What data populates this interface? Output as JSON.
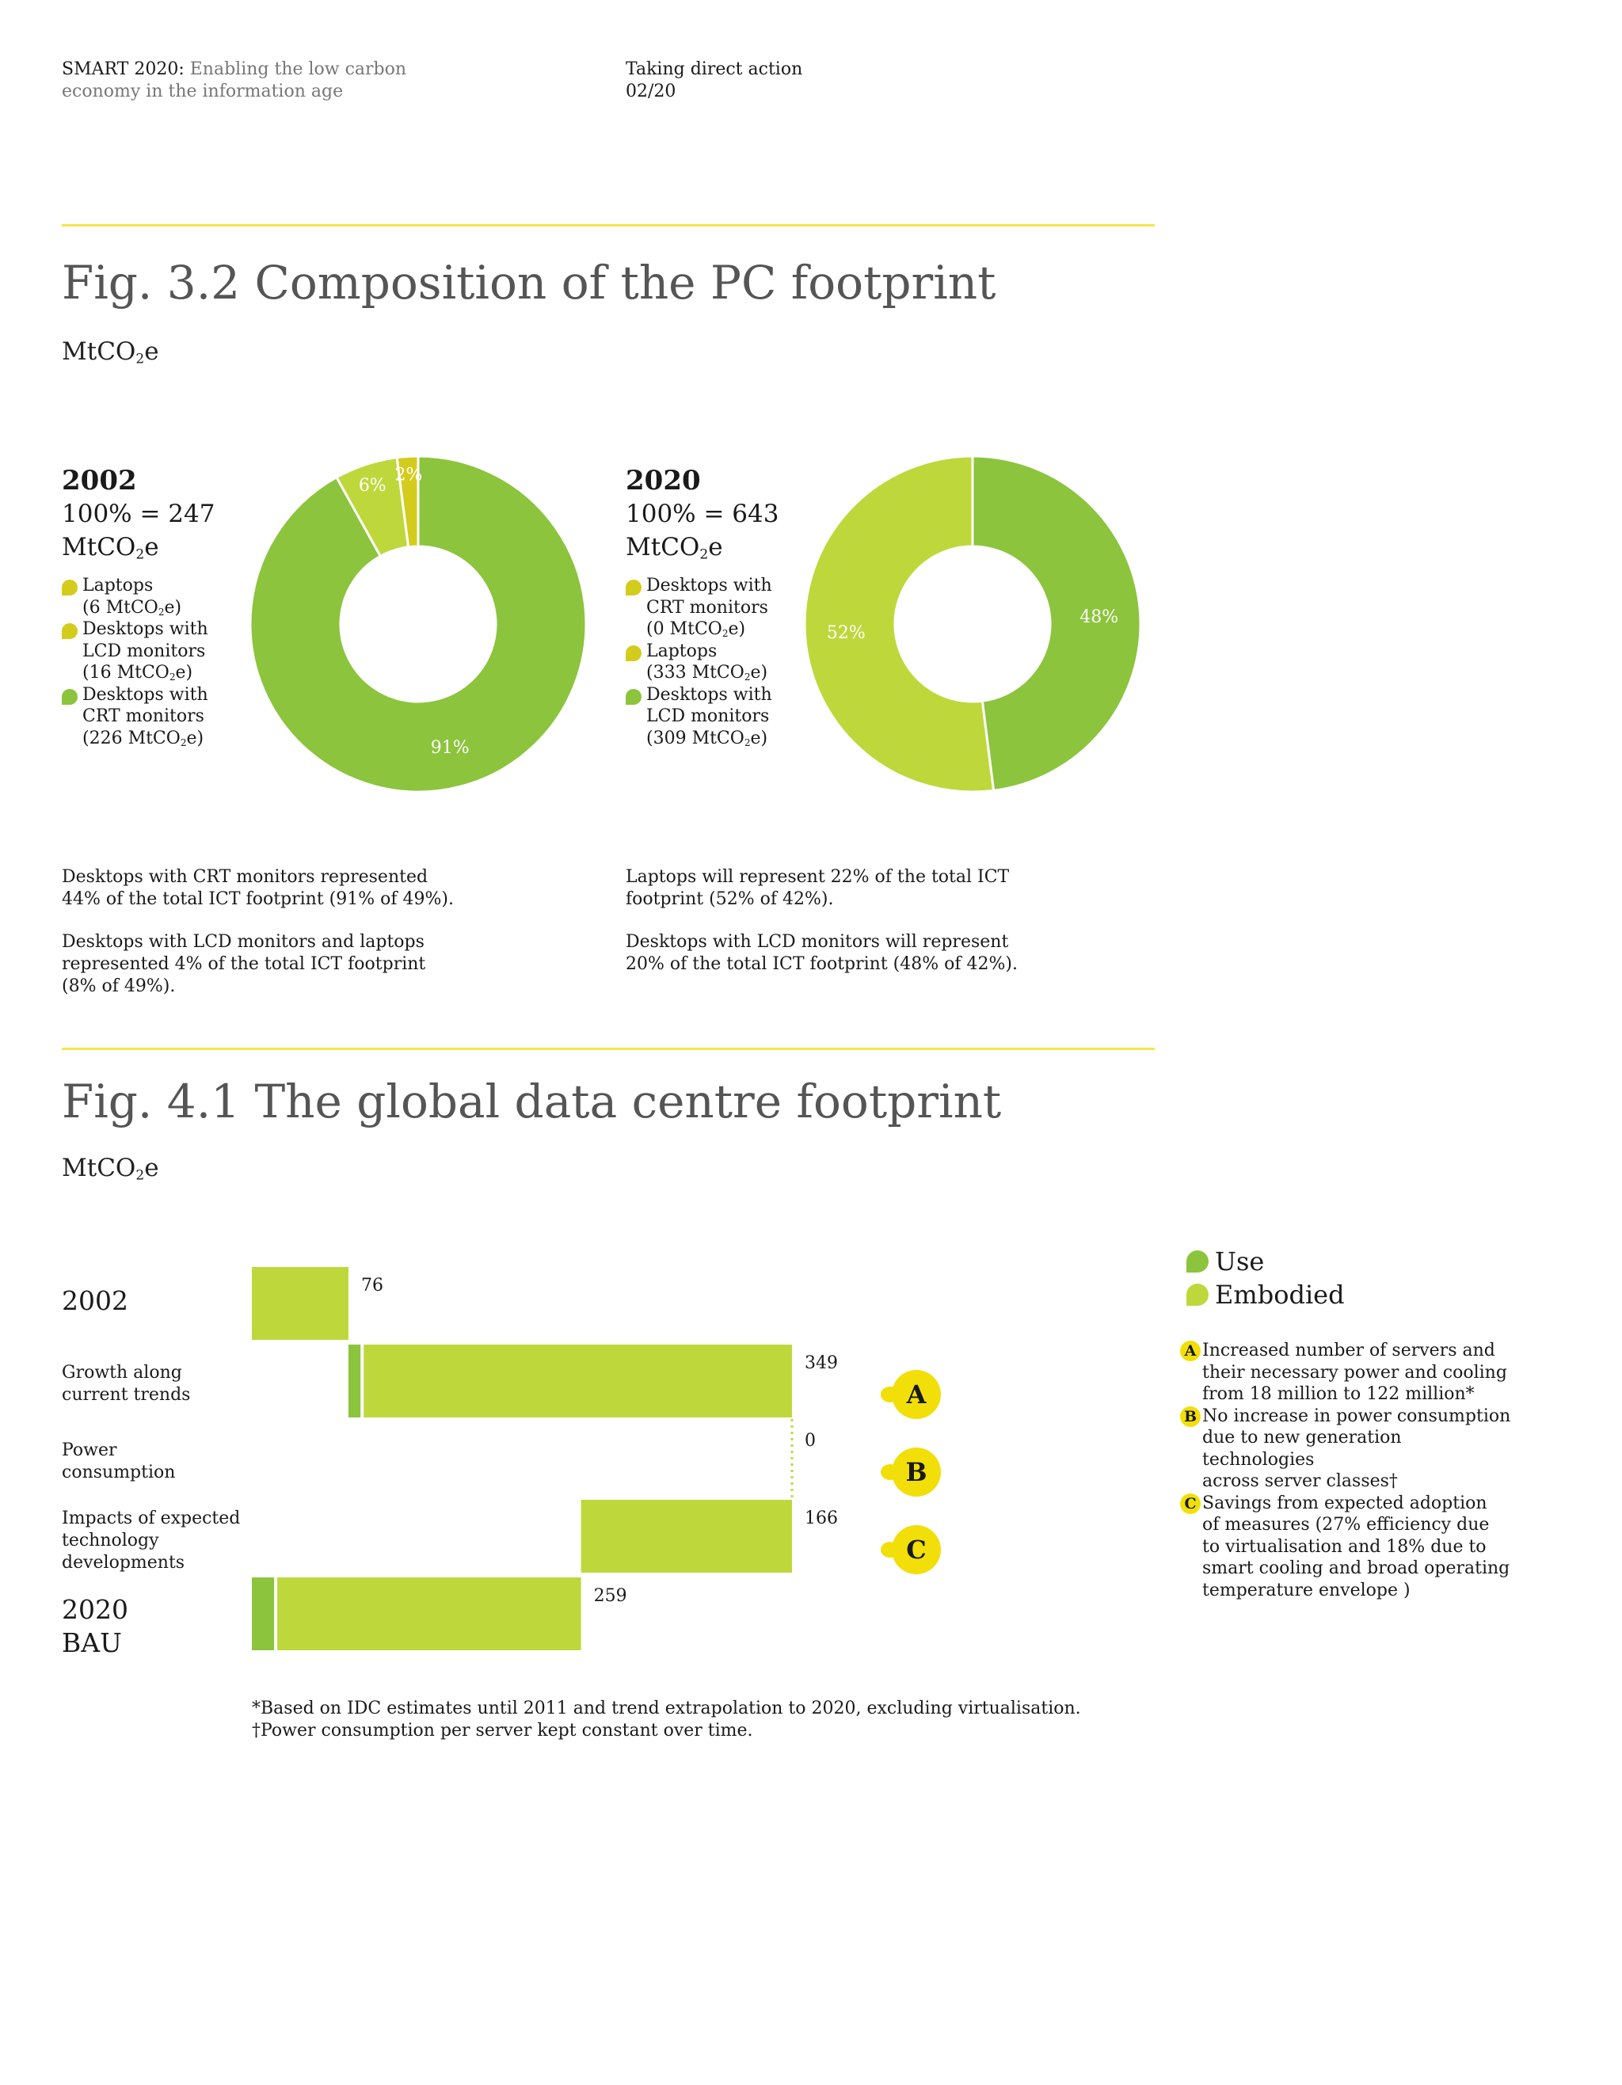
{
  "header": {
    "left_bold": "SMART 2020:",
    "left_rest_line1": "Enabling the low carbon",
    "left_line2": "economy in the information age",
    "right_line1": "Taking direct action",
    "right_line2": "02/20"
  },
  "colors": {
    "rule": "#f2e64a",
    "dark_green": "#8cc43e",
    "light_green": "#bed83c",
    "yellow_green": "#d4cc1c",
    "badge_yellow": "#f2df0a"
  },
  "fig32": {
    "title": "Fig. 3.2 Composition of the PC footprint",
    "unit_main": "MtCO",
    "unit_sub": "2",
    "unit_end": "e",
    "left": {
      "year": "2002",
      "total_line1": "100% = 247",
      "total_line2_main": "MtCO",
      "total_line2_sub": "2",
      "total_line2_end": "e",
      "legend": [
        {
          "l1": "Laptops",
          "l2": "(6 MtCO",
          "sub": "2",
          "end": "e)",
          "l3": "",
          "color": "#d4cc1c"
        },
        {
          "l1": "Desktops with",
          "l2": "LCD monitors",
          "l3a": "(16 MtCO",
          "sub": "2",
          "end": "e)",
          "color": "#d4cc1c"
        },
        {
          "l1": "Desktops with",
          "l2": "CRT monitors",
          "l3a": "(226 MtCO",
          "sub": "2",
          "end": "e)",
          "color": "#8cc43e"
        }
      ],
      "notes": [
        "Desktops with CRT monitors represented",
        "44% of the total ICT footprint (91% of 49%).",
        "Desktops with LCD monitors and laptops",
        "represented 4% of the total ICT footprint",
        "(8% of 49%)."
      ]
    },
    "right": {
      "year": "2020",
      "total_line1": "100% = 643",
      "total_line2_main": "MtCO",
      "total_line2_sub": "2",
      "total_line2_end": "e",
      "legend": [
        {
          "l1": "Desktops with",
          "l2": "CRT monitors",
          "l3a": "(0 MtCO",
          "sub": "2",
          "end": "e)",
          "color": "#d4cc1c"
        },
        {
          "l1": "Laptops",
          "l3a": "(333 MtCO",
          "sub": "2",
          "end": "e)",
          "color": "#d4cc1c"
        },
        {
          "l1": "Desktops with",
          "l2": "LCD monitors",
          "l3a": "(309 MtCO",
          "sub": "2",
          "end": "e)",
          "color": "#8cc43e"
        }
      ],
      "notes": [
        "Laptops will represent 22% of the total ICT",
        "footprint (52% of 42%).",
        "Desktops with LCD monitors will represent",
        "20% of the total ICT footprint (48% of 42%)."
      ]
    }
  },
  "fig41": {
    "title": "Fig. 4.1 The global data centre footprint",
    "unit_main": "MtCO",
    "unit_sub": "2",
    "unit_end": "e",
    "row_labels": {
      "r1": "2002",
      "r2_l1": "Growth along",
      "r2_l2": "current trends",
      "r3_l1": "Power",
      "r3_l2": "consumption",
      "r4_l1": "Impacts of expected",
      "r4_l2": "technology",
      "r4_l3": "developments",
      "r5_l1": "2020",
      "r5_l2": "BAU"
    },
    "badges": [
      "A",
      "B",
      "C"
    ],
    "legend": [
      {
        "label": "Use",
        "color": "#8cc43e"
      },
      {
        "label": "Embodied",
        "color": "#bed83c"
      }
    ],
    "explanations": [
      {
        "badge": "A",
        "lines": [
          "Increased number of servers and",
          "their necessary power and cooling",
          "from 18 million to 122 million*"
        ]
      },
      {
        "badge": "B",
        "lines": [
          "No increase in power consumption",
          "due to new generation technologies",
          "across server classes†"
        ]
      },
      {
        "badge": "C",
        "lines": [
          "Savings from expected adoption",
          "of measures (27% efficiency due",
          "to virtualisation and 18% due to",
          "smart cooling and broad operating",
          "temperature envelope )"
        ]
      }
    ],
    "footnotes": [
      "*Based on IDC estimates until 2011 and trend extrapolation to 2020, excluding virtualisation.",
      "†Power consumption per server kept constant over time."
    ]
  },
  "chart_data": [
    {
      "type": "pie",
      "title": "2002",
      "labels": [
        "Desktops with CRT monitors",
        "Desktops with LCD monitors",
        "Laptops"
      ],
      "values": [
        91,
        6,
        2
      ],
      "value_labels": [
        "91%",
        "6%",
        "2%"
      ],
      "colors": [
        "#8cc43e",
        "#bed83c",
        "#d4cc1c"
      ]
    },
    {
      "type": "pie",
      "title": "2020",
      "labels": [
        "Desktops with LCD monitors",
        "Laptops"
      ],
      "values": [
        48,
        52
      ],
      "value_labels": [
        "48%",
        "52%"
      ],
      "colors": [
        "#8cc43e",
        "#bed83c"
      ]
    },
    {
      "type": "bar",
      "title": "Fig. 4.1 The global data centre footprint",
      "categories": [
        "2002",
        "Growth along current trends",
        "Power consumption",
        "Impacts of expected technology developments",
        "2020 BAU"
      ],
      "totals": [
        76,
        349,
        0,
        166,
        259
      ],
      "value_labels": [
        "76",
        "349",
        "0",
        "166",
        "259"
      ],
      "start": [
        0,
        76,
        425,
        259,
        0
      ],
      "series": [
        {
          "name": "Use",
          "values": [
            0,
            12,
            0,
            0,
            20
          ]
        },
        {
          "name": "Embodied",
          "values": [
            76,
            337,
            0,
            166,
            239
          ]
        }
      ]
    }
  ]
}
